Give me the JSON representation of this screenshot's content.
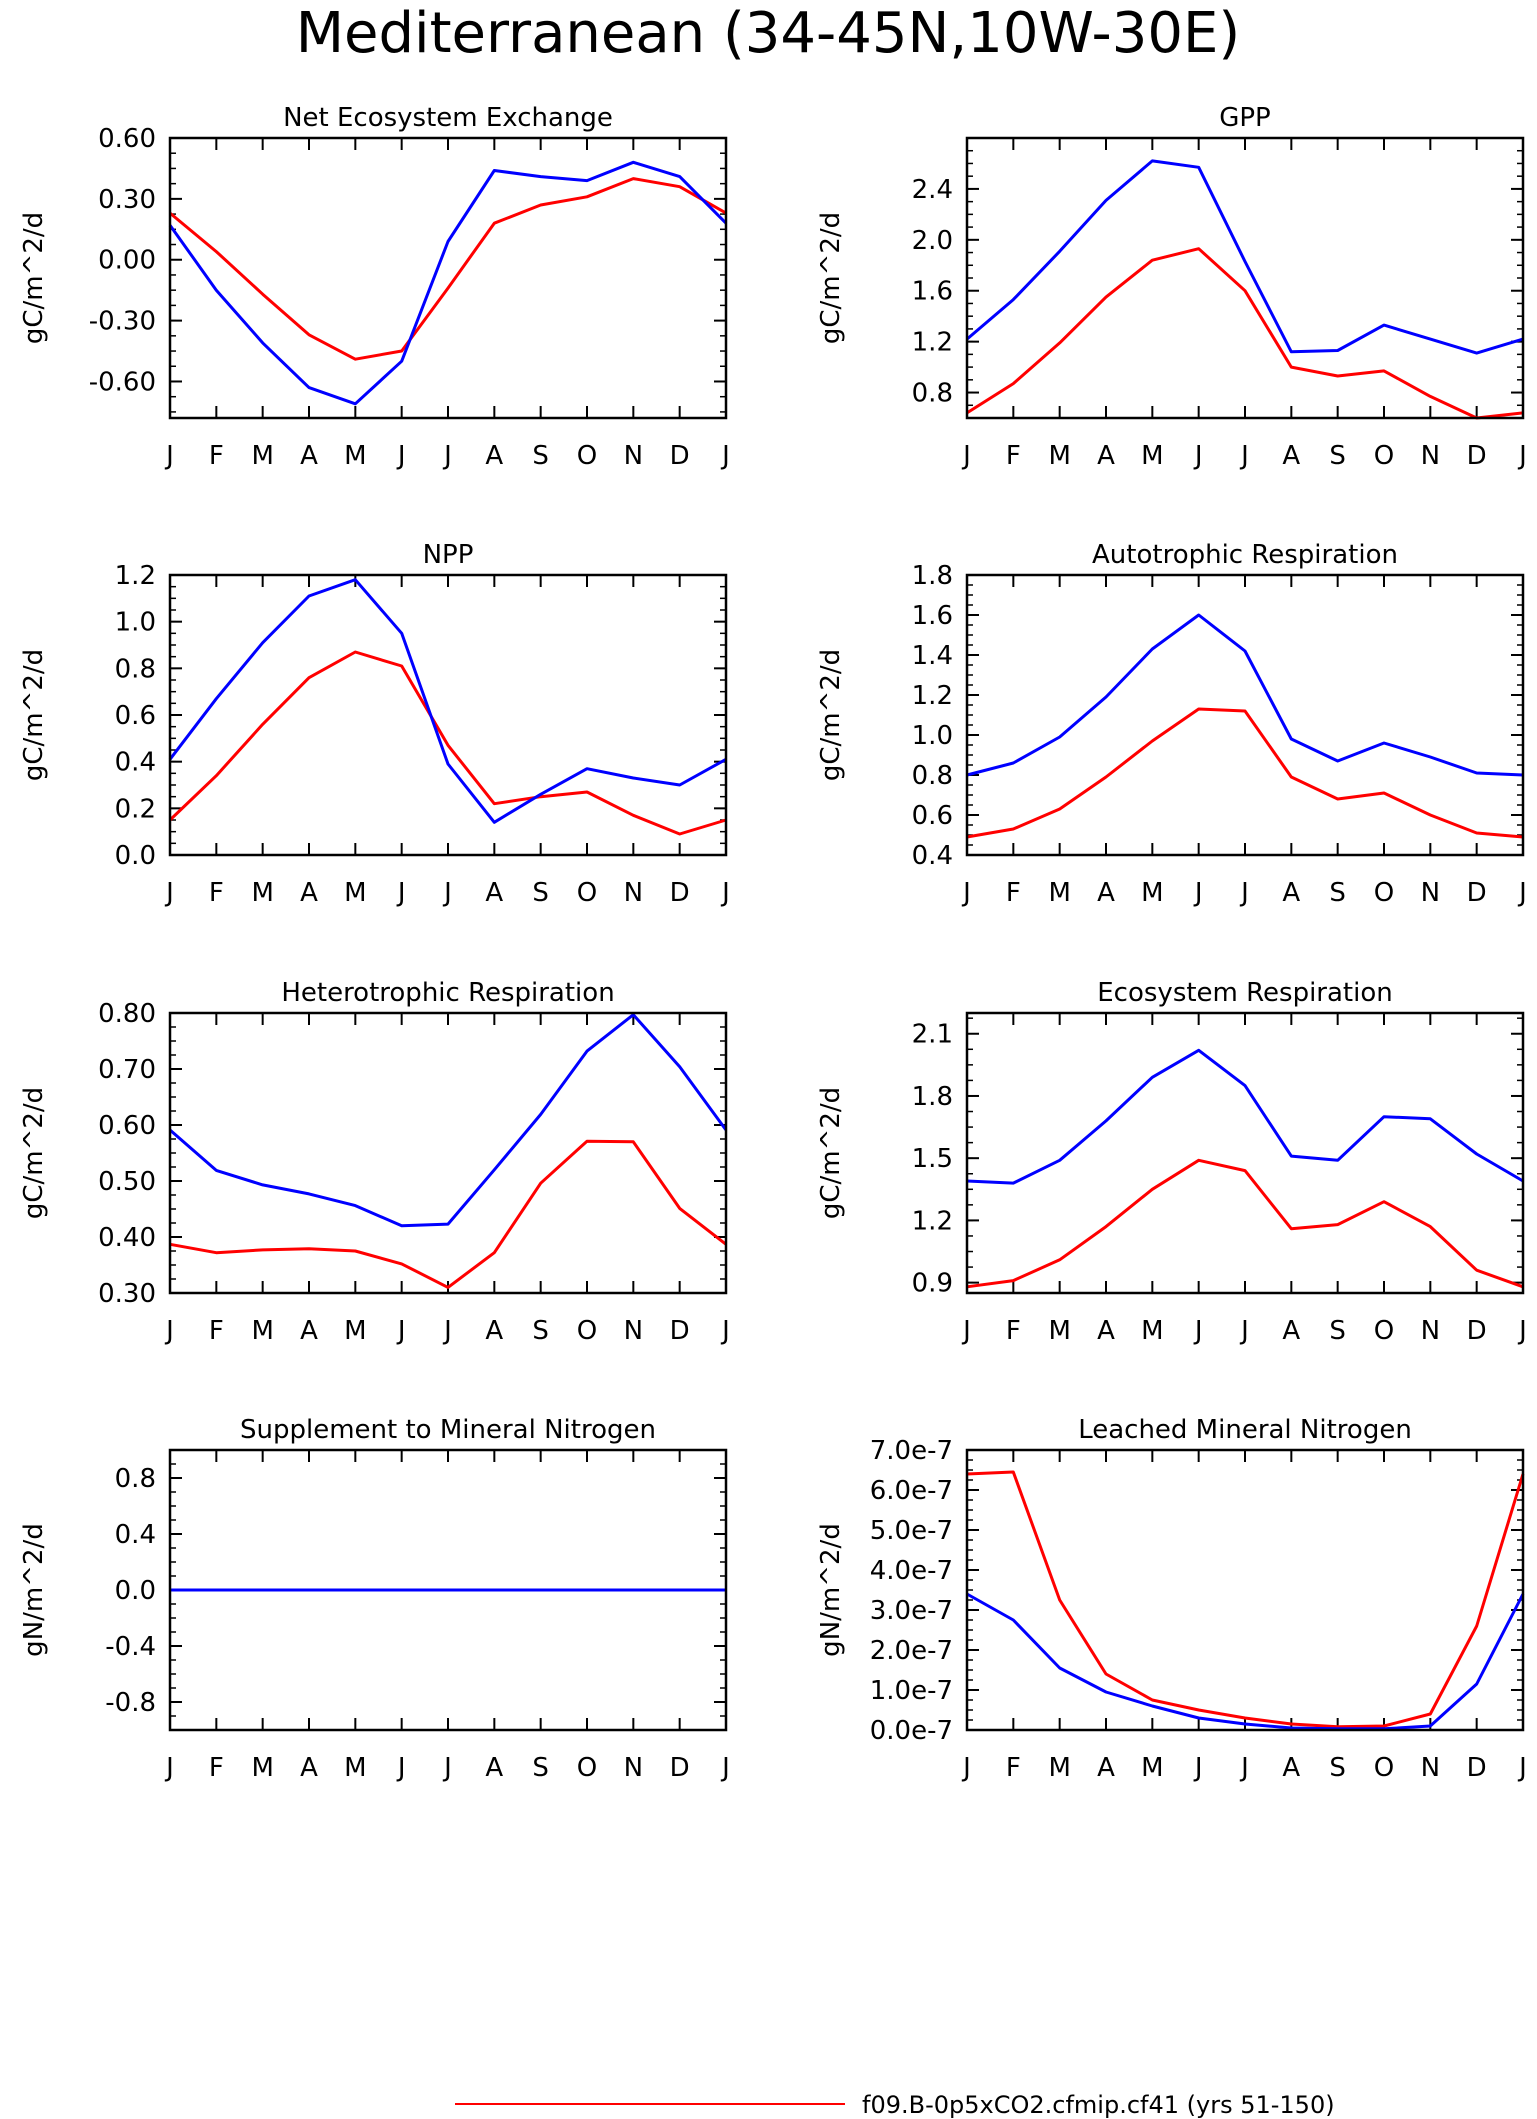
{
  "title": "Mediterranean (34-45N,10W-30E)",
  "legend": {
    "entries": [
      {
        "label": "f09.B-0p5xCO2.cfmip.cf41 (yrs 51-150)",
        "color": "#ff0000"
      }
    ]
  },
  "colors": {
    "red_series": "#ff0000",
    "blue_series": "#0000ff"
  },
  "chart_data": [
    {
      "type": "line",
      "title": "Net Ecosystem Exchange",
      "ylabel": "gC/m^2/d",
      "x": [
        "J",
        "F",
        "M",
        "A",
        "M",
        "J",
        "J",
        "A",
        "S",
        "O",
        "N",
        "D",
        "J"
      ],
      "ylim": [
        -0.78,
        0.6
      ],
      "yticks": [
        0.6,
        0.3,
        0.0,
        -0.3,
        -0.6
      ],
      "ytick_labels": [
        "0.60",
        "0.30",
        "0.00",
        "-0.30",
        "-0.60"
      ],
      "series": [
        {
          "color": "#ff0000",
          "values": [
            0.23,
            0.04,
            -0.17,
            -0.37,
            -0.49,
            -0.45,
            -0.14,
            0.18,
            0.27,
            0.31,
            0.4,
            0.36,
            0.23
          ]
        },
        {
          "color": "#0000ff",
          "values": [
            0.17,
            -0.15,
            -0.41,
            -0.63,
            -0.71,
            -0.5,
            0.09,
            0.44,
            0.41,
            0.39,
            0.48,
            0.41,
            0.18
          ]
        }
      ]
    },
    {
      "type": "line",
      "title": "GPP",
      "ylabel": "gC/m^2/d",
      "x": [
        "J",
        "F",
        "M",
        "A",
        "M",
        "J",
        "J",
        "A",
        "S",
        "O",
        "N",
        "D",
        "J"
      ],
      "ylim": [
        0.6,
        2.8
      ],
      "yticks": [
        2.4,
        2.0,
        1.6,
        1.2,
        0.8
      ],
      "ytick_labels": [
        "2.4",
        "2.0",
        "1.6",
        "1.2",
        "0.8"
      ],
      "series": [
        {
          "color": "#ff0000",
          "values": [
            0.64,
            0.87,
            1.19,
            1.55,
            1.84,
            1.93,
            1.6,
            1.0,
            0.93,
            0.97,
            0.77,
            0.6,
            0.64
          ]
        },
        {
          "color": "#0000ff",
          "values": [
            1.22,
            1.53,
            1.91,
            2.31,
            2.62,
            2.57,
            1.83,
            1.12,
            1.13,
            1.33,
            1.22,
            1.11,
            1.22
          ]
        }
      ]
    },
    {
      "type": "line",
      "title": "NPP",
      "ylabel": "gC/m^2/d",
      "x": [
        "J",
        "F",
        "M",
        "A",
        "M",
        "J",
        "J",
        "A",
        "S",
        "O",
        "N",
        "D",
        "J"
      ],
      "ylim": [
        0.0,
        1.2
      ],
      "yticks": [
        1.2,
        1.0,
        0.8,
        0.6,
        0.4,
        0.2,
        0.0
      ],
      "ytick_labels": [
        "1.2",
        "1.0",
        "0.8",
        "0.6",
        "0.4",
        "0.2",
        "0.0"
      ],
      "series": [
        {
          "color": "#ff0000",
          "values": [
            0.15,
            0.34,
            0.56,
            0.76,
            0.87,
            0.81,
            0.47,
            0.22,
            0.25,
            0.27,
            0.17,
            0.09,
            0.15
          ]
        },
        {
          "color": "#0000ff",
          "values": [
            0.41,
            0.67,
            0.91,
            1.11,
            1.18,
            0.95,
            0.39,
            0.14,
            0.26,
            0.37,
            0.33,
            0.3,
            0.41
          ]
        }
      ]
    },
    {
      "type": "line",
      "title": "Autotrophic Respiration",
      "ylabel": "gC/m^2/d",
      "x": [
        "J",
        "F",
        "M",
        "A",
        "M",
        "J",
        "J",
        "A",
        "S",
        "O",
        "N",
        "D",
        "J"
      ],
      "ylim": [
        0.4,
        1.8
      ],
      "yticks": [
        1.8,
        1.6,
        1.4,
        1.2,
        1.0,
        0.8,
        0.6,
        0.4
      ],
      "ytick_labels": [
        "1.8",
        "1.6",
        "1.4",
        "1.2",
        "1.0",
        "0.8",
        "0.6",
        "0.4"
      ],
      "series": [
        {
          "color": "#ff0000",
          "values": [
            0.49,
            0.53,
            0.63,
            0.79,
            0.97,
            1.13,
            1.12,
            0.79,
            0.68,
            0.71,
            0.6,
            0.51,
            0.49
          ]
        },
        {
          "color": "#0000ff",
          "values": [
            0.8,
            0.86,
            0.99,
            1.19,
            1.43,
            1.6,
            1.42,
            0.98,
            0.87,
            0.96,
            0.89,
            0.81,
            0.8
          ]
        }
      ]
    },
    {
      "type": "line",
      "title": "Heterotrophic Respiration",
      "ylabel": "gC/m^2/d",
      "x": [
        "J",
        "F",
        "M",
        "A",
        "M",
        "J",
        "J",
        "A",
        "S",
        "O",
        "N",
        "D",
        "J"
      ],
      "ylim": [
        0.3,
        0.8
      ],
      "yticks": [
        0.8,
        0.7,
        0.6,
        0.5,
        0.4,
        0.3
      ],
      "ytick_labels": [
        "0.80",
        "0.70",
        "0.60",
        "0.50",
        "0.40",
        "0.30"
      ],
      "series": [
        {
          "color": "#ff0000",
          "values": [
            0.387,
            0.372,
            0.377,
            0.379,
            0.375,
            0.352,
            0.31,
            0.372,
            0.496,
            0.571,
            0.57,
            0.451,
            0.387
          ]
        },
        {
          "color": "#0000ff",
          "values": [
            0.591,
            0.519,
            0.493,
            0.477,
            0.456,
            0.42,
            0.423,
            0.52,
            0.619,
            0.732,
            0.797,
            0.704,
            0.591
          ]
        }
      ]
    },
    {
      "type": "line",
      "title": "Ecosystem Respiration",
      "ylabel": "gC/m^2/d",
      "x": [
        "J",
        "F",
        "M",
        "A",
        "M",
        "J",
        "J",
        "A",
        "S",
        "O",
        "N",
        "D",
        "J"
      ],
      "ylim": [
        0.85,
        2.2
      ],
      "yticks": [
        2.1,
        1.8,
        1.5,
        1.2,
        0.9
      ],
      "ytick_labels": [
        "2.1",
        "1.8",
        "1.5",
        "1.2",
        "0.9"
      ],
      "series": [
        {
          "color": "#ff0000",
          "values": [
            0.88,
            0.91,
            1.01,
            1.17,
            1.35,
            1.49,
            1.44,
            1.16,
            1.18,
            1.29,
            1.17,
            0.96,
            0.88
          ]
        },
        {
          "color": "#0000ff",
          "values": [
            1.39,
            1.38,
            1.49,
            1.68,
            1.89,
            2.02,
            1.85,
            1.51,
            1.49,
            1.7,
            1.69,
            1.52,
            1.39
          ]
        }
      ]
    },
    {
      "type": "line",
      "title": "Supplement to Mineral Nitrogen",
      "ylabel": "gN/m^2/d",
      "x": [
        "J",
        "F",
        "M",
        "A",
        "M",
        "J",
        "J",
        "A",
        "S",
        "O",
        "N",
        "D",
        "J"
      ],
      "ylim": [
        -1.0,
        1.0
      ],
      "yticks": [
        0.8,
        0.4,
        0.0,
        -0.4,
        -0.8
      ],
      "ytick_labels": [
        "0.8",
        "0.4",
        "0.0",
        "-0.4",
        "-0.8"
      ],
      "series": [
        {
          "color": "#ff0000",
          "values": [
            0,
            0,
            0,
            0,
            0,
            0,
            0,
            0,
            0,
            0,
            0,
            0,
            0
          ]
        },
        {
          "color": "#0000ff",
          "values": [
            0,
            0,
            0,
            0,
            0,
            0,
            0,
            0,
            0,
            0,
            0,
            0,
            0
          ]
        }
      ]
    },
    {
      "type": "line",
      "title": "Leached Mineral Nitrogen",
      "ylabel": "gN/m^2/d",
      "x": [
        "J",
        "F",
        "M",
        "A",
        "M",
        "J",
        "J",
        "A",
        "S",
        "O",
        "N",
        "D",
        "J"
      ],
      "ylim": [
        0.0,
        7e-07
      ],
      "yticks": [
        7e-07,
        6e-07,
        5e-07,
        4e-07,
        3e-07,
        2e-07,
        1e-07,
        0.0
      ],
      "ytick_labels": [
        "7.0e-7",
        "6.0e-7",
        "5.0e-7",
        "4.0e-7",
        "3.0e-7",
        "2.0e-7",
        "1.0e-7",
        "0.0e-7"
      ],
      "series": [
        {
          "color": "#ff0000",
          "values": [
            6.4e-07,
            6.45e-07,
            3.25e-07,
            1.4e-07,
            7.5e-08,
            5e-08,
            3e-08,
            1.5e-08,
            8e-09,
            1e-08,
            4e-08,
            2.6e-07,
            6.4e-07
          ]
        },
        {
          "color": "#0000ff",
          "values": [
            3.4e-07,
            2.75e-07,
            1.55e-07,
            9.5e-08,
            6e-08,
            3e-08,
            1.5e-08,
            5e-09,
            3e-09,
            3e-09,
            1e-08,
            1.15e-07,
            3.4e-07
          ]
        }
      ]
    }
  ]
}
